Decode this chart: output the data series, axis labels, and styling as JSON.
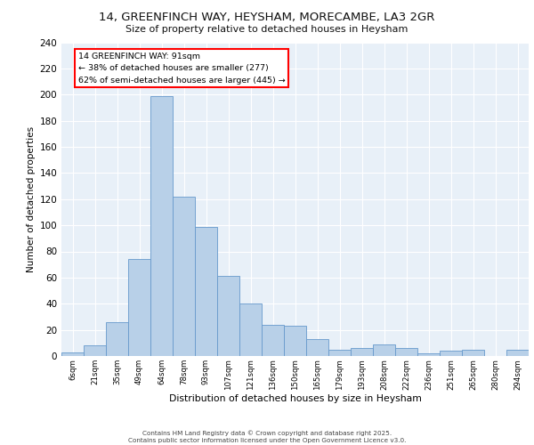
{
  "title_line1": "14, GREENFINCH WAY, HEYSHAM, MORECAMBE, LA3 2GR",
  "title_line2": "Size of property relative to detached houses in Heysham",
  "xlabel": "Distribution of detached houses by size in Heysham",
  "ylabel": "Number of detached properties",
  "bar_color": "#b8d0e8",
  "bar_edge_color": "#6699cc",
  "background_color": "#e8f0f8",
  "grid_color": "#ffffff",
  "annotation_line1": "14 GREENFINCH WAY: 91sqm",
  "annotation_line2": "← 38% of detached houses are smaller (277)",
  "annotation_line3": "62% of semi-detached houses are larger (445) →",
  "footer_text": "Contains HM Land Registry data © Crown copyright and database right 2025.\nContains public sector information licensed under the Open Government Licence v3.0.",
  "categories": [
    "6sqm",
    "21sqm",
    "35sqm",
    "49sqm",
    "64sqm",
    "78sqm",
    "93sqm",
    "107sqm",
    "121sqm",
    "136sqm",
    "150sqm",
    "165sqm",
    "179sqm",
    "193sqm",
    "208sqm",
    "222sqm",
    "236sqm",
    "251sqm",
    "265sqm",
    "280sqm",
    "294sqm"
  ],
  "values": [
    3,
    8,
    26,
    74,
    199,
    122,
    99,
    61,
    40,
    24,
    23,
    13,
    5,
    6,
    9,
    6,
    2,
    4,
    5,
    0,
    5
  ],
  "ylim": [
    0,
    240
  ],
  "yticks": [
    0,
    20,
    40,
    60,
    80,
    100,
    120,
    140,
    160,
    180,
    200,
    220,
    240
  ]
}
